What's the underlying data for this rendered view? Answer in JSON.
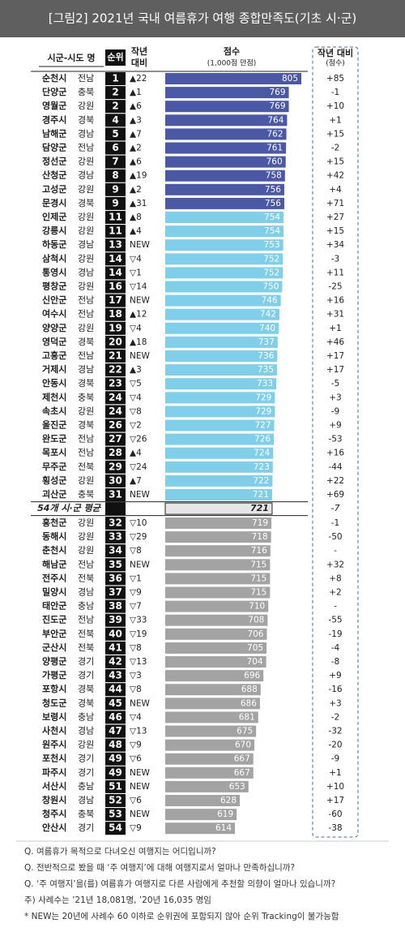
{
  "chart_data": {
    "type": "bar",
    "title": "[그림2] 2021년 국내 여름휴가 여행 종합만족도(기초 시·군)",
    "headers": {
      "name": "시군-시도 명",
      "rank": "순위",
      "change": [
        "작년",
        "대비"
      ],
      "score": "점수",
      "score_sub": "(1,000점 만점)",
      "yoy": "작년 대비",
      "yoy_sub": "(점수)"
    },
    "groups": [
      {
        "color": "#4b58a6",
        "rows": [
          [
            "순천시",
            "전남",
            1,
            "▲22",
            805,
            "+85"
          ],
          [
            "단양군",
            "충북",
            2,
            "▲1",
            769,
            "-1"
          ],
          [
            "영월군",
            "강원",
            2,
            "▲6",
            769,
            "+10"
          ],
          [
            "경주시",
            "경북",
            4,
            "▲3",
            764,
            "+1"
          ],
          [
            "남해군",
            "경남",
            5,
            "▲7",
            762,
            "+15"
          ],
          [
            "담양군",
            "전남",
            6,
            "▲2",
            761,
            "-2"
          ],
          [
            "정선군",
            "강원",
            7,
            "▲6",
            760,
            "+15"
          ],
          [
            "산청군",
            "경남",
            8,
            "▲19",
            758,
            "+42"
          ],
          [
            "고성군",
            "강원",
            9,
            "▲2",
            756,
            "+4"
          ],
          [
            "문경시",
            "경북",
            9,
            "▲31",
            756,
            "+71"
          ]
        ]
      },
      {
        "color": "#7fcfea",
        "rows": [
          [
            "인제군",
            "강원",
            11,
            "▲8",
            754,
            "+27"
          ],
          [
            "강릉시",
            "강원",
            11,
            "▲4",
            754,
            "+15"
          ],
          [
            "하동군",
            "경남",
            13,
            "NEW",
            753,
            "+34"
          ],
          [
            "삼척시",
            "강원",
            14,
            "▽4",
            752,
            "-3"
          ],
          [
            "통영시",
            "경남",
            14,
            "▽1",
            752,
            "+11"
          ],
          [
            "평창군",
            "강원",
            16,
            "▽14",
            750,
            "-25"
          ],
          [
            "신안군",
            "전남",
            17,
            "NEW",
            746,
            "+16"
          ],
          [
            "여수시",
            "전남",
            18,
            "▲12",
            742,
            "+31"
          ],
          [
            "양양군",
            "강원",
            19,
            "▽4",
            740,
            "+1"
          ],
          [
            "영덕군",
            "경북",
            20,
            "▲18",
            737,
            "+46"
          ],
          [
            "고흥군",
            "전남",
            21,
            "NEW",
            736,
            "+17"
          ],
          [
            "거제시",
            "경남",
            22,
            "▲3",
            735,
            "+17"
          ],
          [
            "안동시",
            "경북",
            23,
            "▽5",
            733,
            "-5"
          ],
          [
            "제천시",
            "충북",
            24,
            "▽4",
            729,
            "+3"
          ],
          [
            "속초시",
            "강원",
            24,
            "▽8",
            729,
            "-9"
          ],
          [
            "울진군",
            "경북",
            26,
            "▽2",
            727,
            "+9"
          ],
          [
            "완도군",
            "전남",
            27,
            "▽26",
            726,
            "-53"
          ],
          [
            "목포시",
            "전남",
            28,
            "▲4",
            724,
            "+16"
          ],
          [
            "무주군",
            "전북",
            29,
            "▽24",
            723,
            "-44"
          ],
          [
            "횡성군",
            "강원",
            30,
            "▲7",
            722,
            "+22"
          ],
          [
            "괴산군",
            "충북",
            31,
            "NEW",
            721,
            "+69"
          ]
        ]
      },
      {
        "color": "#a3a3a3",
        "rows": [
          [
            "홍천군",
            "강원",
            32,
            "▽10",
            719,
            "-1"
          ],
          [
            "동해시",
            "강원",
            33,
            "▽29",
            718,
            "-50"
          ],
          [
            "춘천시",
            "강원",
            34,
            "▽8",
            716,
            "-"
          ],
          [
            "해남군",
            "전남",
            35,
            "NEW",
            715,
            "+32"
          ],
          [
            "전주시",
            "전북",
            36,
            "▽1",
            715,
            "+8"
          ],
          [
            "밀양시",
            "경남",
            37,
            "▽9",
            715,
            "+2"
          ],
          [
            "태안군",
            "충남",
            38,
            "▽7",
            710,
            "-"
          ],
          [
            "진도군",
            "전남",
            39,
            "▽33",
            708,
            "-55"
          ],
          [
            "부안군",
            "전북",
            40,
            "▽19",
            706,
            "-19"
          ],
          [
            "군산시",
            "전북",
            41,
            "▽8",
            705,
            "-4"
          ],
          [
            "양평군",
            "경기",
            42,
            "▽13",
            704,
            "-8"
          ],
          [
            "가평군",
            "경기",
            43,
            "▽3",
            696,
            "+9"
          ],
          [
            "포항시",
            "경북",
            44,
            "▽8",
            688,
            "-16"
          ],
          [
            "청도군",
            "경북",
            45,
            "NEW",
            686,
            "+3"
          ],
          [
            "보령시",
            "충남",
            46,
            "▽4",
            681,
            "-2"
          ],
          [
            "사천시",
            "경남",
            47,
            "▽13",
            675,
            "-32"
          ],
          [
            "원주시",
            "강원",
            48,
            "▽9",
            670,
            "-20"
          ],
          [
            "포천시",
            "경기",
            49,
            "▽6",
            667,
            "-9"
          ],
          [
            "파주시",
            "경기",
            49,
            "NEW",
            667,
            "+1"
          ],
          [
            "서산시",
            "충남",
            51,
            "NEW",
            653,
            "+10"
          ],
          [
            "창원시",
            "경남",
            52,
            "▽6",
            628,
            "+17"
          ],
          [
            "청주시",
            "충북",
            53,
            "NEW",
            619,
            "-60"
          ],
          [
            "안산시",
            "경기",
            54,
            "▽9",
            614,
            "-38"
          ]
        ]
      }
    ],
    "average": {
      "label": "54개 시·군 평균",
      "value": 721,
      "yoy": "-7",
      "color": "#e6e6e6"
    },
    "notes": [
      "Q. 여름휴가 목적으로 다녀오신 여행지는 어디입니까?",
      "Q. 전반적으로 봤을 때 ‘주 여행지’에 대해 여행지로서 얼마나 만족하십니까?",
      "Q. ‘주 여행지’을(를) 여름휴가 여행지로 다른 사람에게 추천할 의향이 얼마나 있습니까?",
      "주) 사례수는 ’21년 18,081명, ’20년 16,035 명임",
      "* NEW는 20년에 사례수 60 이하로 순위권에 포함되지 않아 순위 Tracking이 불가능함"
    ]
  }
}
